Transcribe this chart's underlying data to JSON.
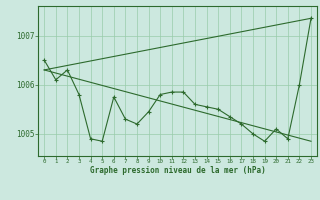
{
  "hours": [
    0,
    1,
    2,
    3,
    4,
    5,
    6,
    7,
    8,
    9,
    10,
    11,
    12,
    13,
    14,
    15,
    16,
    17,
    18,
    19,
    20,
    21,
    22,
    23
  ],
  "pressure": [
    1006.5,
    1006.1,
    1006.3,
    1005.8,
    1004.9,
    1004.85,
    1005.75,
    1005.3,
    1005.2,
    1005.45,
    1005.8,
    1005.85,
    1005.85,
    1005.6,
    1005.55,
    1005.5,
    1005.35,
    1005.2,
    1005.0,
    1004.85,
    1005.1,
    1004.9,
    1006.0,
    1007.35
  ],
  "trend_x": [
    0,
    23
  ],
  "trend_y": [
    1006.3,
    1007.35
  ],
  "trend2_x": [
    0,
    23
  ],
  "trend2_y": [
    1006.3,
    1004.85
  ],
  "bg_color": "#cce8df",
  "line_color": "#2d6a2d",
  "grid_color": "#99ccaa",
  "xlabel": "Graphe pression niveau de la mer (hPa)",
  "ylabel_ticks": [
    1005,
    1006,
    1007
  ],
  "xlim": [
    -0.5,
    23.5
  ],
  "ylim": [
    1004.55,
    1007.6
  ],
  "figsize": [
    3.2,
    2.0
  ],
  "dpi": 100
}
